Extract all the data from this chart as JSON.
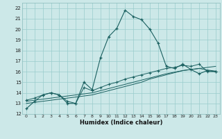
{
  "xlabel": "Humidex (Indice chaleur)",
  "bg_color": "#cce8e8",
  "grid_color": "#99cccc",
  "line_color": "#1a6060",
  "xlim": [
    -0.5,
    23.5
  ],
  "ylim": [
    12,
    22.5
  ],
  "xticks": [
    0,
    1,
    2,
    3,
    4,
    5,
    6,
    7,
    8,
    9,
    10,
    11,
    12,
    13,
    14,
    15,
    16,
    17,
    18,
    19,
    20,
    21,
    22,
    23
  ],
  "yticks": [
    12,
    13,
    14,
    15,
    16,
    17,
    18,
    19,
    20,
    21,
    22
  ],
  "line1_x": [
    0,
    1,
    2,
    3,
    4,
    5,
    6,
    7,
    8,
    9,
    10,
    11,
    12,
    13,
    14,
    15,
    16,
    17,
    18,
    19,
    20,
    21,
    22,
    23
  ],
  "line1_y": [
    12.5,
    13.2,
    13.8,
    14.0,
    13.8,
    13.0,
    13.0,
    15.0,
    14.3,
    17.3,
    19.3,
    20.1,
    21.8,
    21.2,
    20.9,
    20.0,
    18.7,
    16.5,
    16.3,
    16.7,
    16.2,
    15.8,
    16.1,
    16.0
  ],
  "line2_x": [
    0,
    1,
    2,
    3,
    4,
    5,
    6,
    7,
    8,
    9,
    10,
    11,
    12,
    13,
    14,
    15,
    16,
    17,
    18,
    19,
    20,
    21,
    22,
    23
  ],
  "line2_y": [
    13.0,
    13.1,
    13.2,
    13.3,
    13.4,
    13.5,
    13.6,
    13.7,
    13.8,
    14.0,
    14.2,
    14.4,
    14.6,
    14.8,
    15.0,
    15.3,
    15.5,
    15.7,
    15.9,
    16.1,
    16.2,
    16.3,
    16.4,
    16.5
  ],
  "line3_x": [
    0,
    1,
    2,
    3,
    4,
    5,
    6,
    7,
    8,
    9,
    10,
    11,
    12,
    13,
    14,
    15,
    16,
    17,
    18,
    19,
    20,
    21,
    22,
    23
  ],
  "line3_y": [
    13.2,
    13.3,
    13.4,
    13.5,
    13.6,
    13.7,
    13.8,
    13.9,
    14.0,
    14.2,
    14.4,
    14.6,
    14.8,
    15.0,
    15.2,
    15.4,
    15.6,
    15.8,
    15.95,
    16.1,
    16.2,
    16.3,
    16.15,
    16.05
  ],
  "line4_x": [
    0,
    1,
    2,
    3,
    4,
    5,
    6,
    7,
    8,
    9,
    10,
    11,
    12,
    13,
    14,
    15,
    16,
    17,
    18,
    19,
    20,
    21,
    22,
    23
  ],
  "line4_y": [
    13.3,
    13.5,
    13.8,
    14.0,
    13.8,
    13.2,
    13.0,
    14.5,
    14.2,
    14.5,
    14.8,
    15.0,
    15.3,
    15.5,
    15.7,
    15.9,
    16.1,
    16.3,
    16.4,
    16.6,
    16.5,
    16.7,
    16.0,
    16.0
  ]
}
